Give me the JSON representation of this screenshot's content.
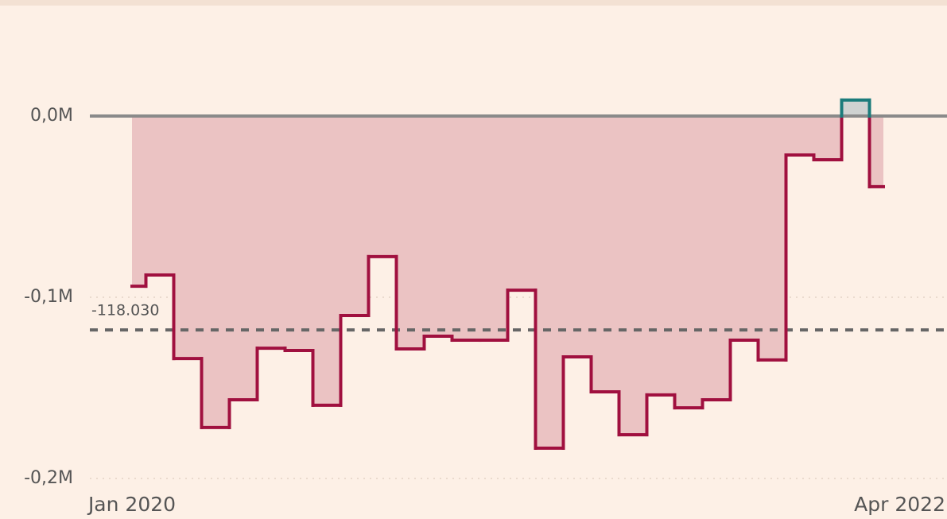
{
  "chart_data": {
    "type": "step",
    "categories": [
      "Jan 2020",
      null,
      null,
      null,
      null,
      null,
      null,
      null,
      null,
      null,
      null,
      null,
      null,
      null,
      null,
      null,
      null,
      null,
      null,
      null,
      null,
      null,
      null,
      null,
      null,
      null,
      null,
      "Apr 2022"
    ],
    "values": [
      -0.0939,
      -0.0877,
      -0.1338,
      -0.1719,
      -0.1566,
      -0.1281,
      -0.1294,
      -0.1596,
      -0.1101,
      -0.0776,
      -0.1285,
      -0.1215,
      -0.1237,
      -0.1237,
      -0.0961,
      -0.1833,
      -0.1329,
      -0.1522,
      -0.1759,
      -0.1539,
      -0.161,
      -0.1566,
      -0.1237,
      -0.1346,
      -0.0215,
      -0.0241,
      0.0088,
      -0.039
    ],
    "colors": {
      "negative_line": "#a0103f",
      "negative_fill": "#ebc3c3",
      "positive_line": "#1b7b7b",
      "positive_fill": "#cfd2d1"
    },
    "ylim": [
      -0.21,
      0.05
    ],
    "yticks": [
      {
        "value": 0,
        "label": "0,0M"
      },
      {
        "value": -0.1,
        "label": "-0,1M"
      },
      {
        "value": -0.2,
        "label": "-0,2M"
      }
    ],
    "reference_line": {
      "value": -0.11803,
      "label": "-118.030"
    },
    "grid": true
  }
}
